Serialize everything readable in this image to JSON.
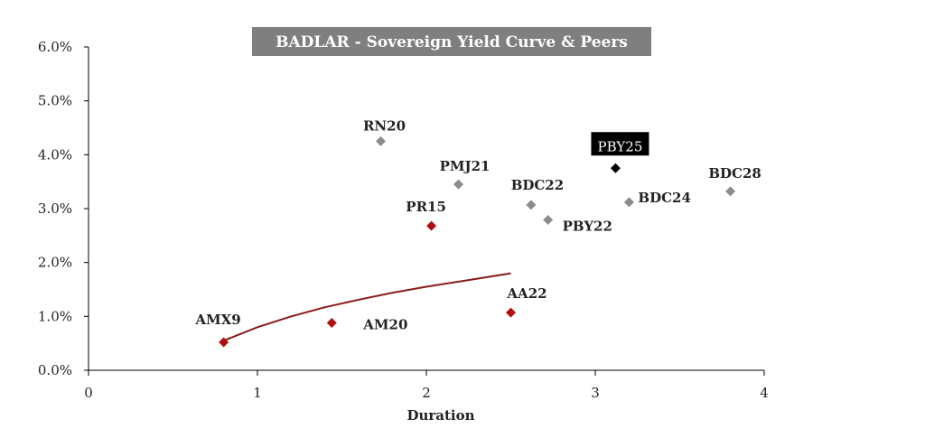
{
  "chart_data": {
    "type": "scatter",
    "title": "BADLAR - Sovereign Yield Curve & Peers",
    "xlabel": "Duration",
    "ylabel": "",
    "xlim": [
      0,
      4
    ],
    "ylim": [
      0,
      6
    ],
    "x_ticks": [
      "0",
      "1",
      "2",
      "3",
      "4"
    ],
    "y_ticks": [
      "0.0%",
      "1.0%",
      "2.0%",
      "3.0%",
      "4.0%",
      "5.0%",
      "6.0%"
    ],
    "grid": false,
    "legend": "none",
    "colors": {
      "sovereign": "#b01010",
      "peer": "#8c8c8c",
      "highlight": "#000000",
      "trend": "#8b1a1a",
      "title_bg": "#7f7f7f"
    },
    "points": [
      {
        "name": "AMX9",
        "x": 0.8,
        "y": 0.52,
        "group": "sovereign"
      },
      {
        "name": "AM20",
        "x": 1.44,
        "y": 0.88,
        "group": "sovereign"
      },
      {
        "name": "PR15",
        "x": 2.03,
        "y": 2.68,
        "group": "sovereign"
      },
      {
        "name": "AA22",
        "x": 2.5,
        "y": 1.07,
        "group": "sovereign"
      },
      {
        "name": "RN20",
        "x": 1.73,
        "y": 4.25,
        "group": "peer"
      },
      {
        "name": "PMJ21",
        "x": 2.19,
        "y": 3.45,
        "group": "peer"
      },
      {
        "name": "BDC22",
        "x": 2.62,
        "y": 3.07,
        "group": "peer"
      },
      {
        "name": "PBY22",
        "x": 2.72,
        "y": 2.79,
        "group": "peer"
      },
      {
        "name": "BDC24",
        "x": 3.2,
        "y": 3.12,
        "group": "peer"
      },
      {
        "name": "BDC28",
        "x": 3.8,
        "y": 3.32,
        "group": "peer"
      },
      {
        "name": "PBY25",
        "x": 3.12,
        "y": 3.75,
        "group": "highlight"
      }
    ],
    "trendline": {
      "x": [
        0.8,
        1.0,
        1.2,
        1.4,
        1.6,
        1.8,
        2.0,
        2.2,
        2.5
      ],
      "y": [
        0.55,
        0.8,
        1.0,
        1.17,
        1.31,
        1.44,
        1.55,
        1.65,
        1.8
      ]
    }
  }
}
